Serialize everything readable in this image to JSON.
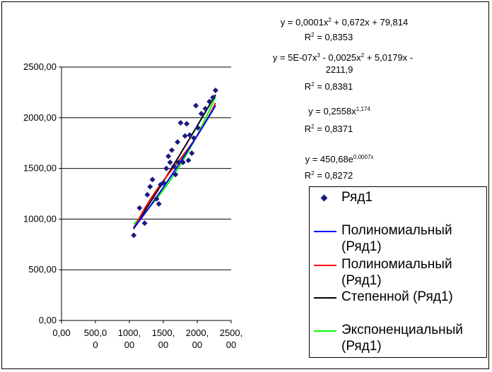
{
  "chart_data": {
    "type": "scatter",
    "title": "",
    "xlabel": "",
    "ylabel": "",
    "xlim": [
      0,
      2500
    ],
    "ylim": [
      0,
      2500
    ],
    "x_ticks": [
      "0,00",
      "500,00",
      "1000,00",
      "1500,00",
      "2000,00",
      "2500,00"
    ],
    "x_tick_lines": [
      [
        "0,00"
      ],
      [
        "500,0",
        "0"
      ],
      [
        "1000,",
        "00"
      ],
      [
        "1500,",
        "00"
      ],
      [
        "2000,",
        "00"
      ],
      [
        "2500,",
        "00"
      ]
    ],
    "y_ticks": [
      "0,00",
      "500,00",
      "1000,00",
      "1500,00",
      "2000,00",
      "2500,00"
    ],
    "y_tick_values": [
      0,
      500,
      1000,
      1500,
      2000,
      2500
    ],
    "x_tick_values": [
      0,
      500,
      1000,
      1500,
      2000,
      2500
    ],
    "grid": "horizontal major gridlines",
    "legend_position": "bottom-right",
    "series": [
      {
        "name": "Ряд1",
        "kind": "points",
        "marker": "diamond",
        "color": "#1a1a80",
        "x": [
          1065,
          1150,
          1225,
          1265,
          1305,
          1340,
          1400,
          1435,
          1460,
          1505,
          1545,
          1575,
          1600,
          1625,
          1655,
          1680,
          1710,
          1725,
          1755,
          1790,
          1820,
          1845,
          1870,
          1890,
          1920,
          1950,
          1980,
          2010,
          2060,
          2120,
          2180,
          2230,
          2270
        ],
        "y": [
          840,
          1110,
          960,
          1240,
          1320,
          1390,
          1200,
          1150,
          1340,
          1360,
          1500,
          1620,
          1560,
          1680,
          1520,
          1440,
          1760,
          1560,
          1950,
          1560,
          1820,
          1940,
          1580,
          1830,
          1650,
          1800,
          2120,
          1900,
          2040,
          2090,
          2160,
          2200,
          2270
        ]
      },
      {
        "name": "Полиномиальный (Ряд1)",
        "kind": "trendline",
        "color": "#0000ff",
        "x0": 1065,
        "x1": 2270,
        "eq": "poly2"
      },
      {
        "name": "Полиномиальный (Ряд1)",
        "kind": "trendline",
        "color": "#ff0000",
        "x0": 1065,
        "x1": 2270,
        "eq": "poly3"
      },
      {
        "name": "Степенной (Ряд1)",
        "kind": "trendline",
        "color": "#000000",
        "x0": 1065,
        "x1": 2270,
        "eq": "power"
      },
      {
        "name": "Экспоненциальный (Ряд1)",
        "kind": "trendline",
        "color": "#00ff00",
        "x0": 1065,
        "x1": 2270,
        "eq": "exp"
      }
    ],
    "legend": [
      {
        "label": "Ряд1",
        "kind": "marker",
        "color": "#1a1a80"
      },
      {
        "label": "Полиномиальный\n(Ряд1)",
        "kind": "line",
        "color": "#0000ff"
      },
      {
        "label": "Полиномиальный\n(Ряд1)",
        "kind": "line",
        "color": "#ff0000"
      },
      {
        "label": "Степенной (Ряд1)",
        "kind": "line",
        "color": "#000000"
      },
      {
        "label": "Экспоненциальный\n(Ряд1)",
        "kind": "line",
        "color": "#00ff00"
      }
    ],
    "annotations": {
      "poly2_eq": [
        "y = 0,0001x",
        "2",
        " + 0,672x + 79,814"
      ],
      "poly2_r2": [
        "R",
        "2",
        " = 0,8353"
      ],
      "poly3_eq_a": [
        "y = 5E-07x",
        "3",
        " - 0,0025x",
        "2",
        " + 5,0179x -"
      ],
      "poly3_eq_b": "2211,9",
      "poly3_r2": [
        "R",
        "2",
        " = 0,8381"
      ],
      "power_eq": [
        "y = 0,2558x",
        "1,174"
      ],
      "power_r2": [
        "R",
        "2",
        " = 0,8371"
      ],
      "exp_eq": [
        "y = 450,68e",
        "0,0007x"
      ],
      "exp_r2": [
        "R",
        "2",
        " = 0,8272"
      ]
    }
  }
}
